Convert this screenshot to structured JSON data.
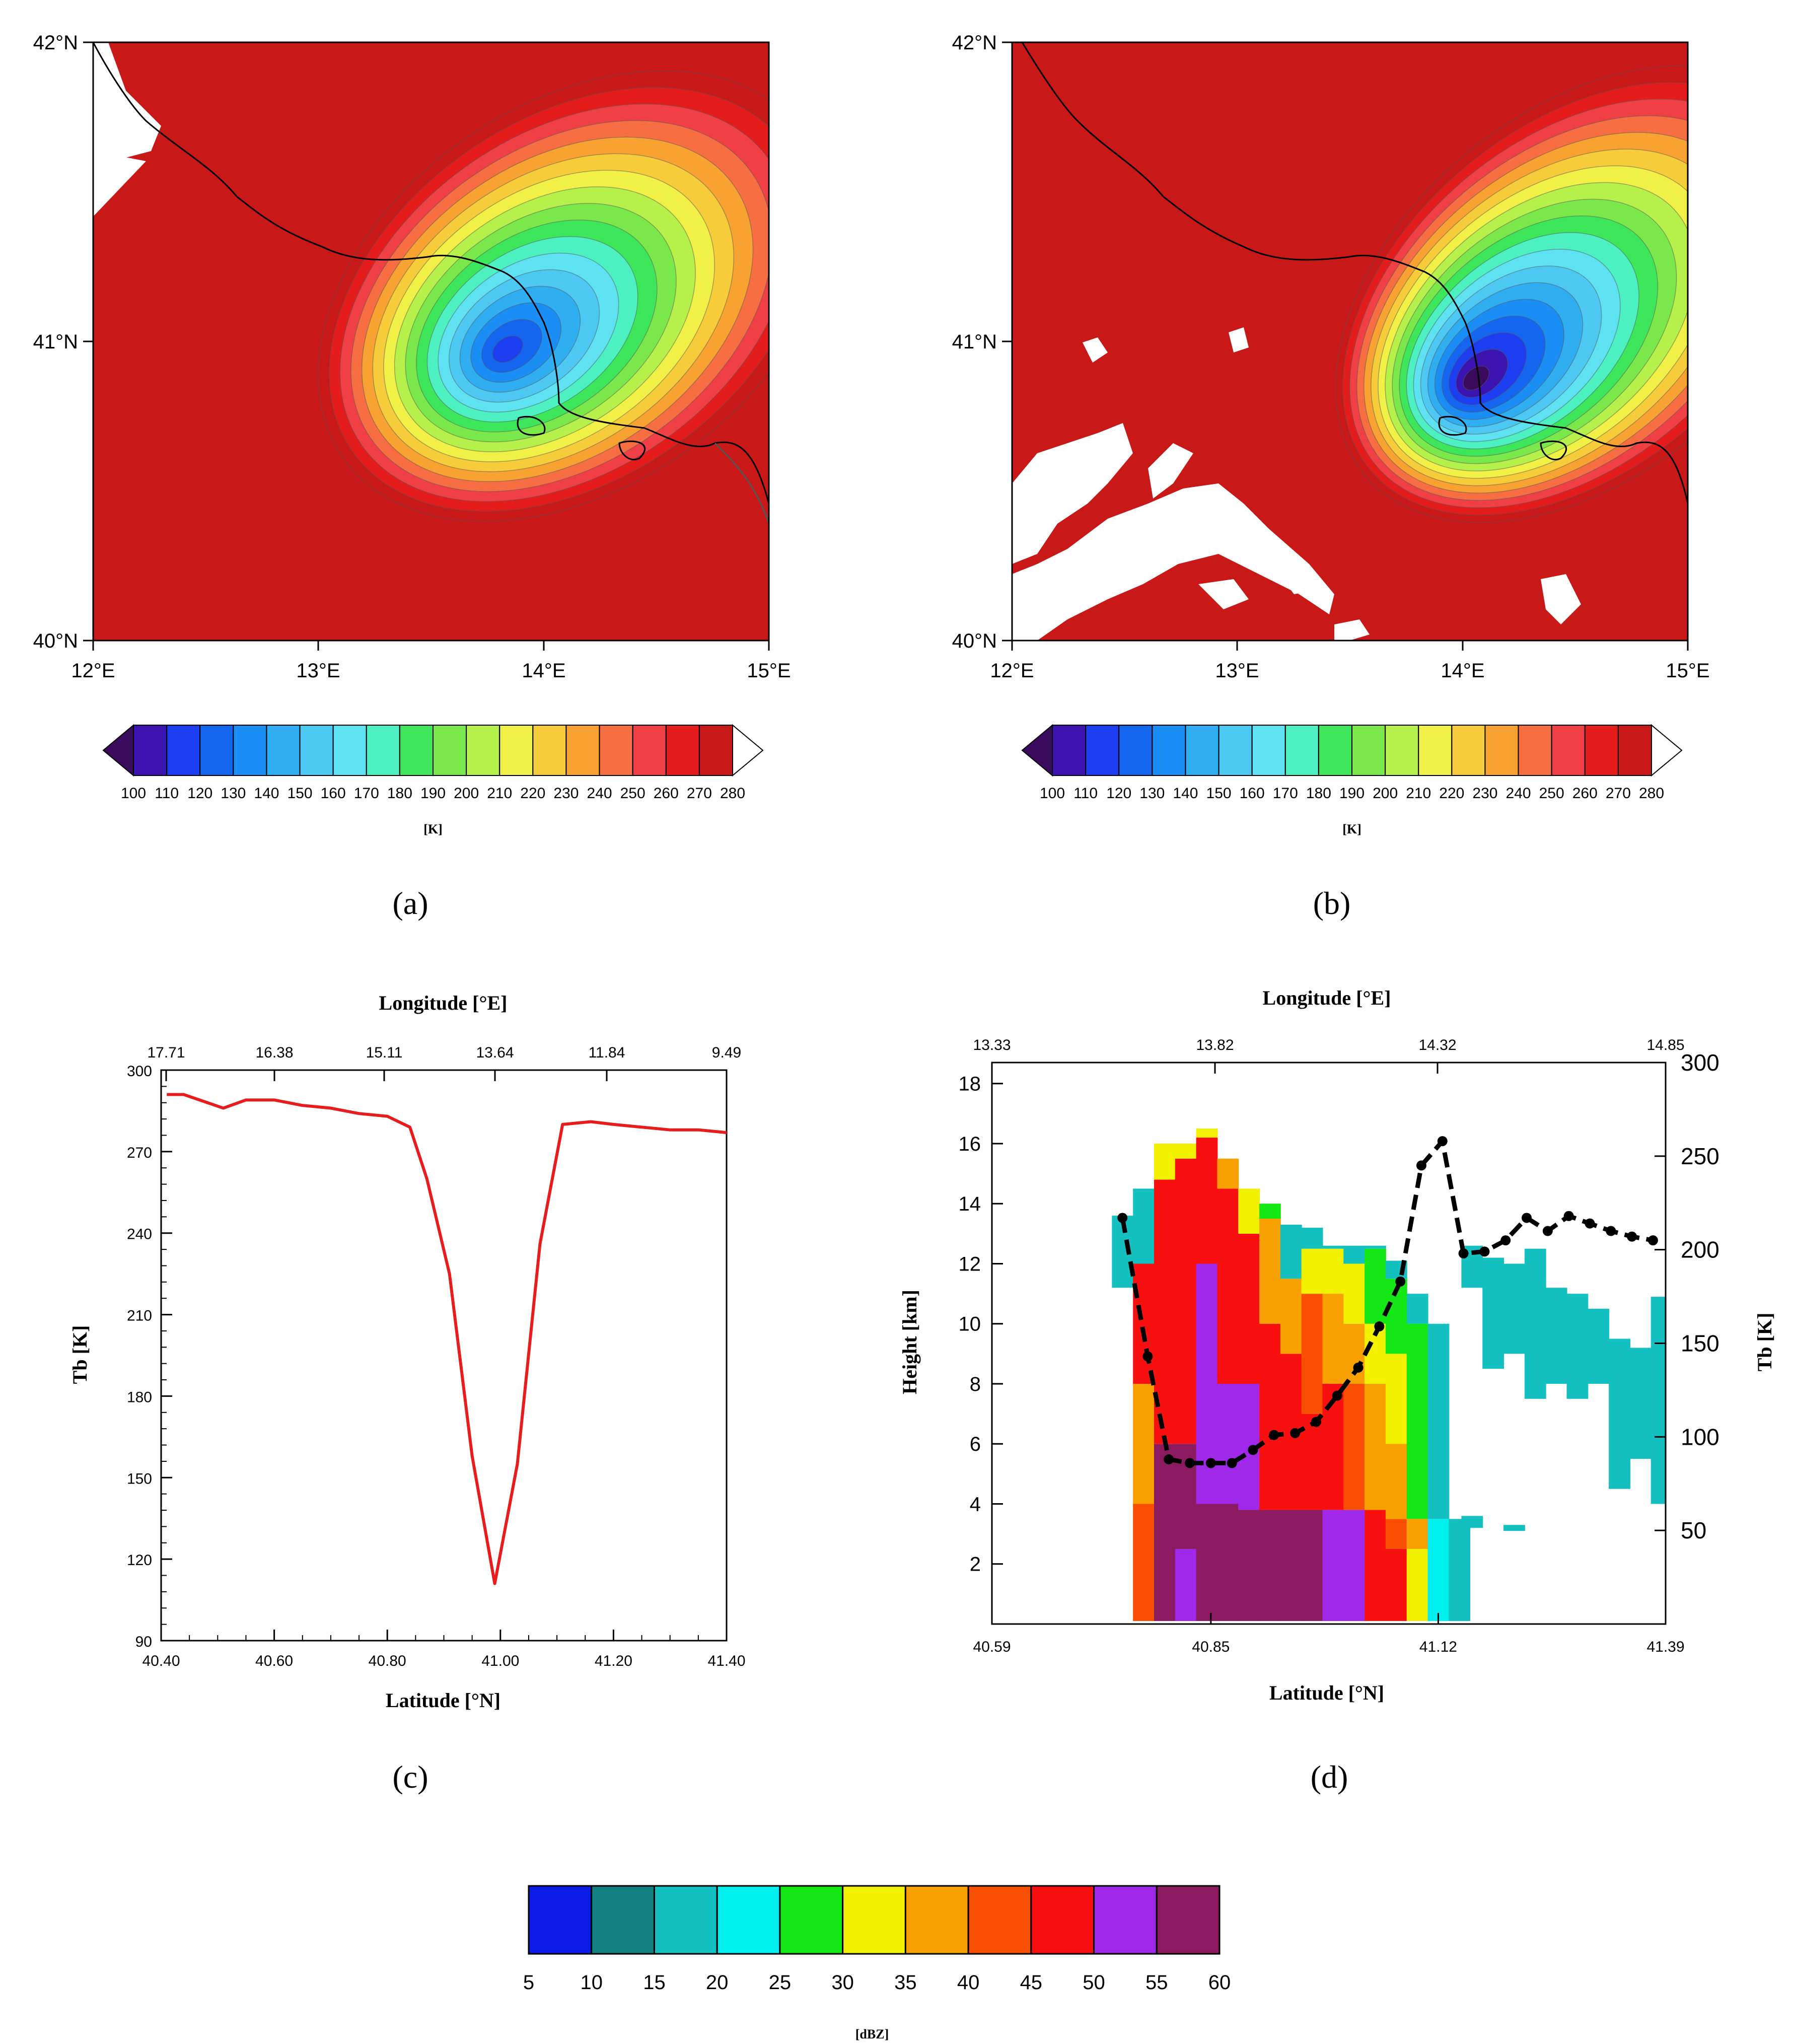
{
  "panels": {
    "a": {
      "label": "(a)",
      "lat_ticks": [
        "42°N",
        "41°N",
        "40°N"
      ],
      "lon_ticks": [
        "12°E",
        "13°E",
        "14°E",
        "15°E"
      ],
      "colorbar_ticks": [
        "100",
        "110",
        "120",
        "130",
        "140",
        "150",
        "160",
        "170",
        "180",
        "190",
        "200",
        "210",
        "220",
        "230",
        "240",
        "250",
        "260",
        "270",
        "280"
      ],
      "colorbar_unit": "[K]"
    },
    "b": {
      "label": "(b)",
      "lat_ticks": [
        "42°N",
        "41°N",
        "40°N"
      ],
      "lon_ticks": [
        "12°E",
        "13°E",
        "14°E",
        "15°E"
      ],
      "colorbar_ticks": [
        "100",
        "110",
        "120",
        "130",
        "140",
        "150",
        "160",
        "170",
        "180",
        "190",
        "200",
        "210",
        "220",
        "230",
        "240",
        "250",
        "260",
        "270",
        "280"
      ],
      "colorbar_unit": "[K]"
    },
    "c": {
      "label": "(c)"
    },
    "d": {
      "label": "(d)"
    }
  },
  "tb_colors": [
    "#3a0a5c",
    "#3b13b0",
    "#1c3df0",
    "#1466f0",
    "#1a8ef5",
    "#30aef2",
    "#4cc8f2",
    "#5ee2f2",
    "#4df0c0",
    "#3de65a",
    "#7ae84a",
    "#b6f04a",
    "#f0f046",
    "#f6cc3a",
    "#f8a232",
    "#f66e42",
    "#f04046",
    "#e51c1c",
    "#c81818"
  ],
  "chart_data": [
    {
      "type": "line",
      "panel": "c",
      "title": "",
      "top_axis_label": "Longitude [°E]",
      "top_ticks": [
        "17.71",
        "16.38",
        "15.11",
        "13.64",
        "11.84",
        "9.49"
      ],
      "xlabel": "Latitude [°N]",
      "ylabel": "Tb [K]",
      "x_ticks": [
        "40.40",
        "40.60",
        "40.80",
        "41.00",
        "41.20",
        "41.40"
      ],
      "y_ticks": [
        "300",
        "270",
        "240",
        "210",
        "180",
        "150",
        "120",
        "90"
      ],
      "xlim": [
        40.4,
        41.4
      ],
      "ylim": [
        90,
        300
      ],
      "color": "#e81c1c",
      "x": [
        40.41,
        40.44,
        40.51,
        40.55,
        40.6,
        40.65,
        40.7,
        40.75,
        40.8,
        40.84,
        40.87,
        40.91,
        40.95,
        40.99,
        41.03,
        41.07,
        41.11,
        41.16,
        41.2,
        41.25,
        41.3,
        41.35,
        41.4
      ],
      "y": [
        291,
        291,
        286,
        289,
        289,
        287,
        286,
        284,
        283,
        279,
        260,
        225,
        158,
        111,
        155,
        236,
        280,
        281,
        280,
        279,
        278,
        278,
        277
      ]
    },
    {
      "type": "heatmap",
      "panel": "d",
      "top_axis_label": "Longitude [°E]",
      "top_ticks": [
        "13.33",
        "13.82",
        "14.32",
        "14.85"
      ],
      "xlabel": "Latitude [°N]",
      "ylabel": "Height [km]",
      "y2label": "Tb [K]",
      "x_ticks": [
        "40.59",
        "40.85",
        "41.12",
        "41.39"
      ],
      "y_ticks": [
        "18",
        "16",
        "14",
        "12",
        "10",
        "8",
        "6",
        "4",
        "2"
      ],
      "y2_ticks": [
        "300",
        "250",
        "200",
        "150",
        "100",
        "50"
      ],
      "xlim": [
        40.59,
        41.39
      ],
      "ylim": [
        0,
        18.7
      ],
      "y2lim": [
        0,
        300
      ],
      "cell_width_deg": 0.025,
      "columns": [
        {
          "x": 40.745,
          "bands": [
            [
              11.2,
              13.6,
              15
            ]
          ]
        },
        {
          "x": 40.77,
          "bands": [
            [
              0.1,
              4.0,
              40
            ],
            [
              4.0,
              8.0,
              35
            ],
            [
              8.0,
              12.0,
              45
            ],
            [
              12.0,
              14.5,
              15
            ]
          ]
        },
        {
          "x": 40.795,
          "bands": [
            [
              0.1,
              6.0,
              55
            ],
            [
              6.0,
              14.8,
              45
            ],
            [
              14.8,
              16.0,
              30
            ]
          ]
        },
        {
          "x": 40.82,
          "bands": [
            [
              0.1,
              2.5,
              50
            ],
            [
              2.5,
              6.0,
              55
            ],
            [
              6.0,
              15.5,
              45
            ],
            [
              15.5,
              16.0,
              30
            ]
          ]
        },
        {
          "x": 40.845,
          "bands": [
            [
              0.1,
              4.0,
              55
            ],
            [
              4.0,
              12.0,
              50
            ],
            [
              12.0,
              16.2,
              45
            ],
            [
              16.2,
              16.5,
              30
            ]
          ]
        },
        {
          "x": 40.87,
          "bands": [
            [
              0.1,
              4.0,
              55
            ],
            [
              4.0,
              8.0,
              50
            ],
            [
              8.0,
              14.5,
              45
            ],
            [
              14.5,
              15.5,
              35
            ]
          ]
        },
        {
          "x": 40.895,
          "bands": [
            [
              0.1,
              3.8,
              55
            ],
            [
              3.8,
              8.0,
              50
            ],
            [
              8.0,
              13.0,
              45
            ],
            [
              13.0,
              14.5,
              30
            ]
          ]
        },
        {
          "x": 40.92,
          "bands": [
            [
              0.1,
              3.8,
              60
            ],
            [
              3.8,
              10.0,
              45
            ],
            [
              10.0,
              13.5,
              35
            ],
            [
              13.5,
              14.0,
              25
            ]
          ]
        },
        {
          "x": 40.945,
          "bands": [
            [
              0.1,
              3.8,
              60
            ],
            [
              3.8,
              9.0,
              45
            ],
            [
              9.0,
              11.5,
              35
            ],
            [
              11.5,
              13.3,
              15
            ]
          ]
        },
        {
          "x": 40.97,
          "bands": [
            [
              0.1,
              3.8,
              55
            ],
            [
              3.8,
              7.0,
              45
            ],
            [
              7.0,
              11.0,
              40
            ],
            [
              11.0,
              12.5,
              30
            ],
            [
              12.5,
              13.2,
              15
            ]
          ]
        },
        {
          "x": 40.995,
          "bands": [
            [
              0.1,
              3.8,
              50
            ],
            [
              3.8,
              8.0,
              45
            ],
            [
              8.0,
              11.0,
              35
            ],
            [
              11.0,
              12.5,
              30
            ],
            [
              12.5,
              12.6,
              15
            ]
          ]
        },
        {
          "x": 41.02,
          "bands": [
            [
              0.1,
              3.8,
              50
            ],
            [
              3.8,
              8.0,
              40
            ],
            [
              8.0,
              10.0,
              35
            ],
            [
              10.0,
              12.0,
              30
            ],
            [
              12.0,
              12.6,
              15
            ]
          ]
        },
        {
          "x": 41.045,
          "bands": [
            [
              0.1,
              3.8,
              45
            ],
            [
              3.8,
              8.0,
              35
            ],
            [
              8.0,
              10.0,
              30
            ],
            [
              10.0,
              12.5,
              25
            ],
            [
              12.5,
              12.6,
              15
            ]
          ]
        },
        {
          "x": 41.07,
          "bands": [
            [
              0.1,
              2.5,
              45
            ],
            [
              2.5,
              3.5,
              40
            ],
            [
              3.5,
              6.0,
              35
            ],
            [
              6.0,
              9.0,
              30
            ],
            [
              9.0,
              11.5,
              25
            ],
            [
              11.5,
              12.1,
              15
            ]
          ]
        },
        {
          "x": 41.095,
          "bands": [
            [
              0.1,
              2.5,
              30
            ],
            [
              2.5,
              3.5,
              35
            ],
            [
              3.5,
              10.0,
              25
            ],
            [
              10.0,
              11.0,
              15
            ]
          ]
        },
        {
          "x": 41.12,
          "bands": [
            [
              0.1,
              3.5,
              20
            ],
            [
              3.5,
              10.0,
              15
            ]
          ]
        },
        {
          "x": 41.145,
          "bands": [
            [
              0.1,
              3.5,
              15
            ]
          ]
        }
      ],
      "sparse_cells": [
        [
          41.16,
          11.2,
          12.6
        ],
        [
          41.185,
          8.5,
          12.2
        ],
        [
          41.21,
          9.0,
          12.0
        ],
        [
          41.235,
          7.5,
          12.5
        ],
        [
          41.26,
          8.0,
          11.2
        ],
        [
          41.285,
          7.5,
          11.0
        ],
        [
          41.31,
          8.0,
          10.5
        ],
        [
          41.335,
          4.5,
          9.5
        ],
        [
          41.36,
          5.5,
          9.2
        ],
        [
          41.385,
          4.0,
          10.9
        ],
        [
          41.16,
          3.2,
          3.6
        ],
        [
          41.21,
          3.1,
          3.3
        ]
      ],
      "tb_line": {
        "style": "dashed",
        "color": "#000000",
        "x": [
          40.745,
          40.775,
          40.8,
          40.825,
          40.85,
          40.875,
          40.9,
          40.925,
          40.95,
          40.975,
          41.0,
          41.025,
          41.05,
          41.075,
          41.1,
          41.125,
          41.15,
          41.175,
          41.2,
          41.225,
          41.25,
          41.275,
          41.3,
          41.325,
          41.35,
          41.375
        ],
        "y": [
          217,
          143,
          88,
          86,
          86,
          86,
          93,
          101,
          102,
          108,
          122,
          137,
          159,
          183,
          245,
          258,
          198,
          199,
          205,
          217,
          210,
          218,
          214,
          210,
          207,
          205
        ]
      },
      "colorbar": {
        "ticks": [
          "5",
          "10",
          "15",
          "20",
          "25",
          "30",
          "35",
          "40",
          "45",
          "50",
          "55",
          "60"
        ],
        "unit": "[dBZ]",
        "colors": [
          "#0c1ce8",
          "#128080",
          "#14c0c0",
          "#00f0f0",
          "#14e814",
          "#f0f000",
          "#f8a000",
          "#f85000",
          "#f81010",
          "#a028e8",
          "#8c1a60"
        ]
      }
    }
  ]
}
